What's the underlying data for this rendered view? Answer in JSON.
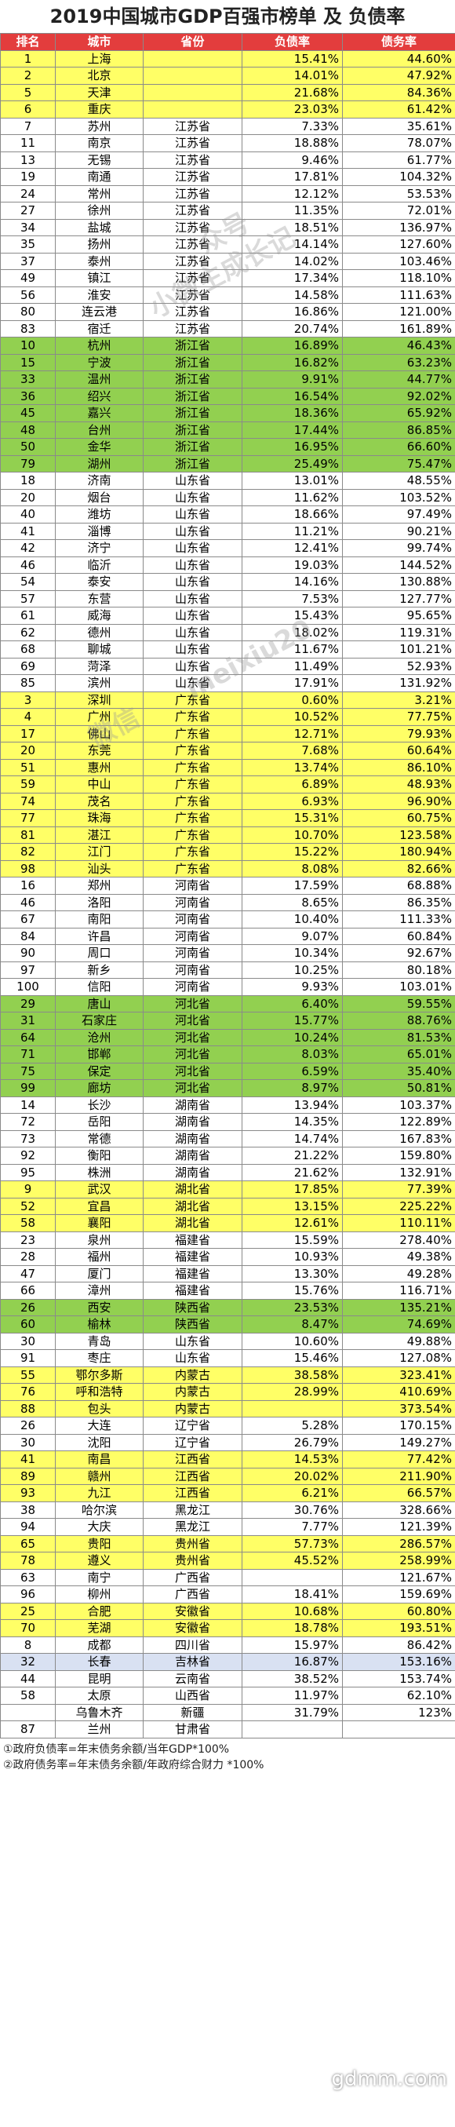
{
  "title": "2019中国城市GDP百强市榜单 及 负债率",
  "headers": [
    "排名",
    "城市",
    "省份",
    "负债率",
    "债务率"
  ],
  "colors": {
    "header_bg": "#e33d3d",
    "header_text": "#ffffff",
    "band_yellow": "#ffff66",
    "band_green": "#92d050",
    "band_blue": "#d9e1f2",
    "band_white": "#ffffff"
  },
  "rows": [
    [
      "1",
      "上海",
      "",
      "15.41%",
      "44.60%",
      "yellow"
    ],
    [
      "2",
      "北京",
      "",
      "14.01%",
      "47.92%",
      "yellow"
    ],
    [
      "5",
      "天津",
      "",
      "21.68%",
      "84.36%",
      "yellow"
    ],
    [
      "6",
      "重庆",
      "",
      "23.03%",
      "61.42%",
      "yellow"
    ],
    [
      "7",
      "苏州",
      "江苏省",
      "7.33%",
      "35.61%",
      "white"
    ],
    [
      "11",
      "南京",
      "江苏省",
      "18.88%",
      "78.07%",
      "white"
    ],
    [
      "13",
      "无锡",
      "江苏省",
      "9.46%",
      "61.77%",
      "white"
    ],
    [
      "19",
      "南通",
      "江苏省",
      "17.81%",
      "104.32%",
      "white"
    ],
    [
      "24",
      "常州",
      "江苏省",
      "12.12%",
      "53.53%",
      "white"
    ],
    [
      "27",
      "徐州",
      "江苏省",
      "11.35%",
      "72.01%",
      "white"
    ],
    [
      "34",
      "盐城",
      "江苏省",
      "18.51%",
      "136.97%",
      "white"
    ],
    [
      "35",
      "扬州",
      "江苏省",
      "14.14%",
      "127.60%",
      "white"
    ],
    [
      "37",
      "泰州",
      "江苏省",
      "14.02%",
      "103.46%",
      "white"
    ],
    [
      "49",
      "镇江",
      "江苏省",
      "17.34%",
      "118.10%",
      "white"
    ],
    [
      "56",
      "淮安",
      "江苏省",
      "14.58%",
      "111.63%",
      "white"
    ],
    [
      "80",
      "连云港",
      "江苏省",
      "16.86%",
      "121.00%",
      "white"
    ],
    [
      "83",
      "宿迁",
      "江苏省",
      "20.74%",
      "161.89%",
      "white"
    ],
    [
      "10",
      "杭州",
      "浙江省",
      "16.89%",
      "46.43%",
      "green"
    ],
    [
      "15",
      "宁波",
      "浙江省",
      "16.82%",
      "63.23%",
      "green"
    ],
    [
      "33",
      "温州",
      "浙江省",
      "9.91%",
      "44.77%",
      "green"
    ],
    [
      "36",
      "绍兴",
      "浙江省",
      "16.54%",
      "92.02%",
      "green"
    ],
    [
      "45",
      "嘉兴",
      "浙江省",
      "18.36%",
      "65.92%",
      "green"
    ],
    [
      "48",
      "台州",
      "浙江省",
      "17.44%",
      "86.85%",
      "green"
    ],
    [
      "50",
      "金华",
      "浙江省",
      "16.95%",
      "66.60%",
      "green"
    ],
    [
      "79",
      "湖州",
      "浙江省",
      "25.49%",
      "75.47%",
      "green"
    ],
    [
      "18",
      "济南",
      "山东省",
      "13.01%",
      "48.55%",
      "white"
    ],
    [
      "20",
      "烟台",
      "山东省",
      "11.62%",
      "103.52%",
      "white"
    ],
    [
      "40",
      "潍坊",
      "山东省",
      "18.66%",
      "97.49%",
      "white"
    ],
    [
      "41",
      "淄博",
      "山东省",
      "11.21%",
      "90.21%",
      "white"
    ],
    [
      "42",
      "济宁",
      "山东省",
      "12.41%",
      "99.74%",
      "white"
    ],
    [
      "46",
      "临沂",
      "山东省",
      "19.03%",
      "144.52%",
      "white"
    ],
    [
      "54",
      "泰安",
      "山东省",
      "14.16%",
      "130.88%",
      "white"
    ],
    [
      "57",
      "东营",
      "山东省",
      "7.53%",
      "127.77%",
      "white"
    ],
    [
      "61",
      "威海",
      "山东省",
      "15.43%",
      "95.65%",
      "white"
    ],
    [
      "62",
      "德州",
      "山东省",
      "18.02%",
      "119.31%",
      "white"
    ],
    [
      "68",
      "聊城",
      "山东省",
      "11.67%",
      "101.21%",
      "white"
    ],
    [
      "69",
      "菏泽",
      "山东省",
      "11.49%",
      "52.93%",
      "white"
    ],
    [
      "85",
      "滨州",
      "山东省",
      "17.91%",
      "131.92%",
      "white"
    ],
    [
      "3",
      "深圳",
      "广东省",
      "0.60%",
      "3.21%",
      "yellow"
    ],
    [
      "4",
      "广州",
      "广东省",
      "10.52%",
      "77.75%",
      "yellow"
    ],
    [
      "17",
      "佛山",
      "广东省",
      "12.71%",
      "79.93%",
      "yellow"
    ],
    [
      "20",
      "东莞",
      "广东省",
      "7.68%",
      "60.64%",
      "yellow"
    ],
    [
      "51",
      "惠州",
      "广东省",
      "13.74%",
      "86.10%",
      "yellow"
    ],
    [
      "59",
      "中山",
      "广东省",
      "6.89%",
      "48.93%",
      "yellow"
    ],
    [
      "74",
      "茂名",
      "广东省",
      "6.93%",
      "96.90%",
      "yellow"
    ],
    [
      "77",
      "珠海",
      "广东省",
      "15.31%",
      "60.75%",
      "yellow"
    ],
    [
      "81",
      "湛江",
      "广东省",
      "10.70%",
      "123.58%",
      "yellow"
    ],
    [
      "82",
      "江门",
      "广东省",
      "15.22%",
      "180.94%",
      "yellow"
    ],
    [
      "98",
      "汕头",
      "广东省",
      "8.08%",
      "82.66%",
      "yellow"
    ],
    [
      "16",
      "郑州",
      "河南省",
      "17.59%",
      "68.88%",
      "white"
    ],
    [
      "46",
      "洛阳",
      "河南省",
      "8.65%",
      "86.35%",
      "white"
    ],
    [
      "67",
      "南阳",
      "河南省",
      "10.40%",
      "111.33%",
      "white"
    ],
    [
      "84",
      "许昌",
      "河南省",
      "9.07%",
      "60.84%",
      "white"
    ],
    [
      "90",
      "周口",
      "河南省",
      "10.34%",
      "92.67%",
      "white"
    ],
    [
      "97",
      "新乡",
      "河南省",
      "10.25%",
      "80.18%",
      "white"
    ],
    [
      "100",
      "信阳",
      "河南省",
      "9.93%",
      "103.01%",
      "white"
    ],
    [
      "29",
      "唐山",
      "河北省",
      "6.40%",
      "59.55%",
      "green"
    ],
    [
      "31",
      "石家庄",
      "河北省",
      "15.77%",
      "88.76%",
      "green"
    ],
    [
      "64",
      "沧州",
      "河北省",
      "10.24%",
      "81.53%",
      "green"
    ],
    [
      "71",
      "邯郸",
      "河北省",
      "8.03%",
      "65.01%",
      "green"
    ],
    [
      "75",
      "保定",
      "河北省",
      "6.59%",
      "35.40%",
      "green"
    ],
    [
      "99",
      "廊坊",
      "河北省",
      "8.97%",
      "50.81%",
      "green"
    ],
    [
      "14",
      "长沙",
      "湖南省",
      "13.94%",
      "103.37%",
      "white"
    ],
    [
      "72",
      "岳阳",
      "湖南省",
      "14.35%",
      "122.89%",
      "white"
    ],
    [
      "73",
      "常德",
      "湖南省",
      "14.74%",
      "167.83%",
      "white"
    ],
    [
      "92",
      "衡阳",
      "湖南省",
      "21.22%",
      "159.80%",
      "white"
    ],
    [
      "95",
      "株洲",
      "湖南省",
      "21.62%",
      "132.91%",
      "white"
    ],
    [
      "9",
      "武汉",
      "湖北省",
      "17.85%",
      "77.39%",
      "yellow"
    ],
    [
      "52",
      "宜昌",
      "湖北省",
      "13.15%",
      "225.22%",
      "yellow"
    ],
    [
      "58",
      "襄阳",
      "湖北省",
      "12.61%",
      "110.11%",
      "yellow"
    ],
    [
      "23",
      "泉州",
      "福建省",
      "15.59%",
      "278.40%",
      "white"
    ],
    [
      "28",
      "福州",
      "福建省",
      "10.93%",
      "49.38%",
      "white"
    ],
    [
      "47",
      "厦门",
      "福建省",
      "13.30%",
      "49.28%",
      "white"
    ],
    [
      "66",
      "漳州",
      "福建省",
      "15.76%",
      "116.71%",
      "white"
    ],
    [
      "26",
      "西安",
      "陕西省",
      "23.53%",
      "135.21%",
      "green"
    ],
    [
      "60",
      "榆林",
      "陕西省",
      "8.47%",
      "74.69%",
      "green"
    ],
    [
      "30",
      "青岛",
      "山东省",
      "10.60%",
      "49.88%",
      "white"
    ],
    [
      "91",
      "枣庄",
      "山东省",
      "15.46%",
      "127.08%",
      "white"
    ],
    [
      "55",
      "鄂尔多斯",
      "内蒙古",
      "38.58%",
      "323.41%",
      "yellow"
    ],
    [
      "76",
      "呼和浩特",
      "内蒙古",
      "28.99%",
      "410.69%",
      "yellow"
    ],
    [
      "88",
      "包头",
      "内蒙古",
      "",
      "373.54%",
      "yellow"
    ],
    [
      "26",
      "大连",
      "辽宁省",
      "5.28%",
      "170.15%",
      "white"
    ],
    [
      "30",
      "沈阳",
      "辽宁省",
      "26.79%",
      "149.27%",
      "white"
    ],
    [
      "41",
      "南昌",
      "江西省",
      "14.53%",
      "77.42%",
      "yellow"
    ],
    [
      "89",
      "赣州",
      "江西省",
      "20.02%",
      "211.90%",
      "yellow"
    ],
    [
      "93",
      "九江",
      "江西省",
      "6.21%",
      "66.57%",
      "yellow"
    ],
    [
      "38",
      "哈尔滨",
      "黑龙江",
      "30.76%",
      "328.66%",
      "white"
    ],
    [
      "94",
      "大庆",
      "黑龙江",
      "7.77%",
      "121.39%",
      "white"
    ],
    [
      "65",
      "贵阳",
      "贵州省",
      "57.73%",
      "286.57%",
      "yellow"
    ],
    [
      "78",
      "遵义",
      "贵州省",
      "45.52%",
      "258.99%",
      "yellow"
    ],
    [
      "63",
      "南宁",
      "广西省",
      "",
      "121.67%",
      "white"
    ],
    [
      "96",
      "柳州",
      "广西省",
      "18.41%",
      "159.69%",
      "white"
    ],
    [
      "25",
      "合肥",
      "安徽省",
      "10.68%",
      "60.80%",
      "yellow"
    ],
    [
      "70",
      "芜湖",
      "安徽省",
      "18.78%",
      "193.51%",
      "yellow"
    ],
    [
      "8",
      "成都",
      "四川省",
      "15.97%",
      "86.42%",
      "white"
    ],
    [
      "32",
      "长春",
      "吉林省",
      "16.87%",
      "153.16%",
      "blue"
    ],
    [
      "44",
      "昆明",
      "云南省",
      "38.52%",
      "153.74%",
      "white"
    ],
    [
      "58",
      "太原",
      "山西省",
      "11.97%",
      "62.10%",
      "white"
    ],
    [
      "",
      "乌鲁木齐",
      "新疆",
      "31.79%",
      "123%",
      "white"
    ],
    [
      "87",
      "兰州",
      "甘肃省",
      "",
      "",
      "white"
    ]
  ],
  "footer": {
    "note1": "①政府负债率=年末债务余额/当年GDP*100%",
    "note2": "②政府债务率=年末债务余额/年政府综合财力 *100%"
  },
  "watermarks": {
    "wm1": "众号",
    "wm2": "小微主成长记",
    "wm3": "微信",
    "wm4": "meixiu20",
    "site": "gdmm.com"
  }
}
